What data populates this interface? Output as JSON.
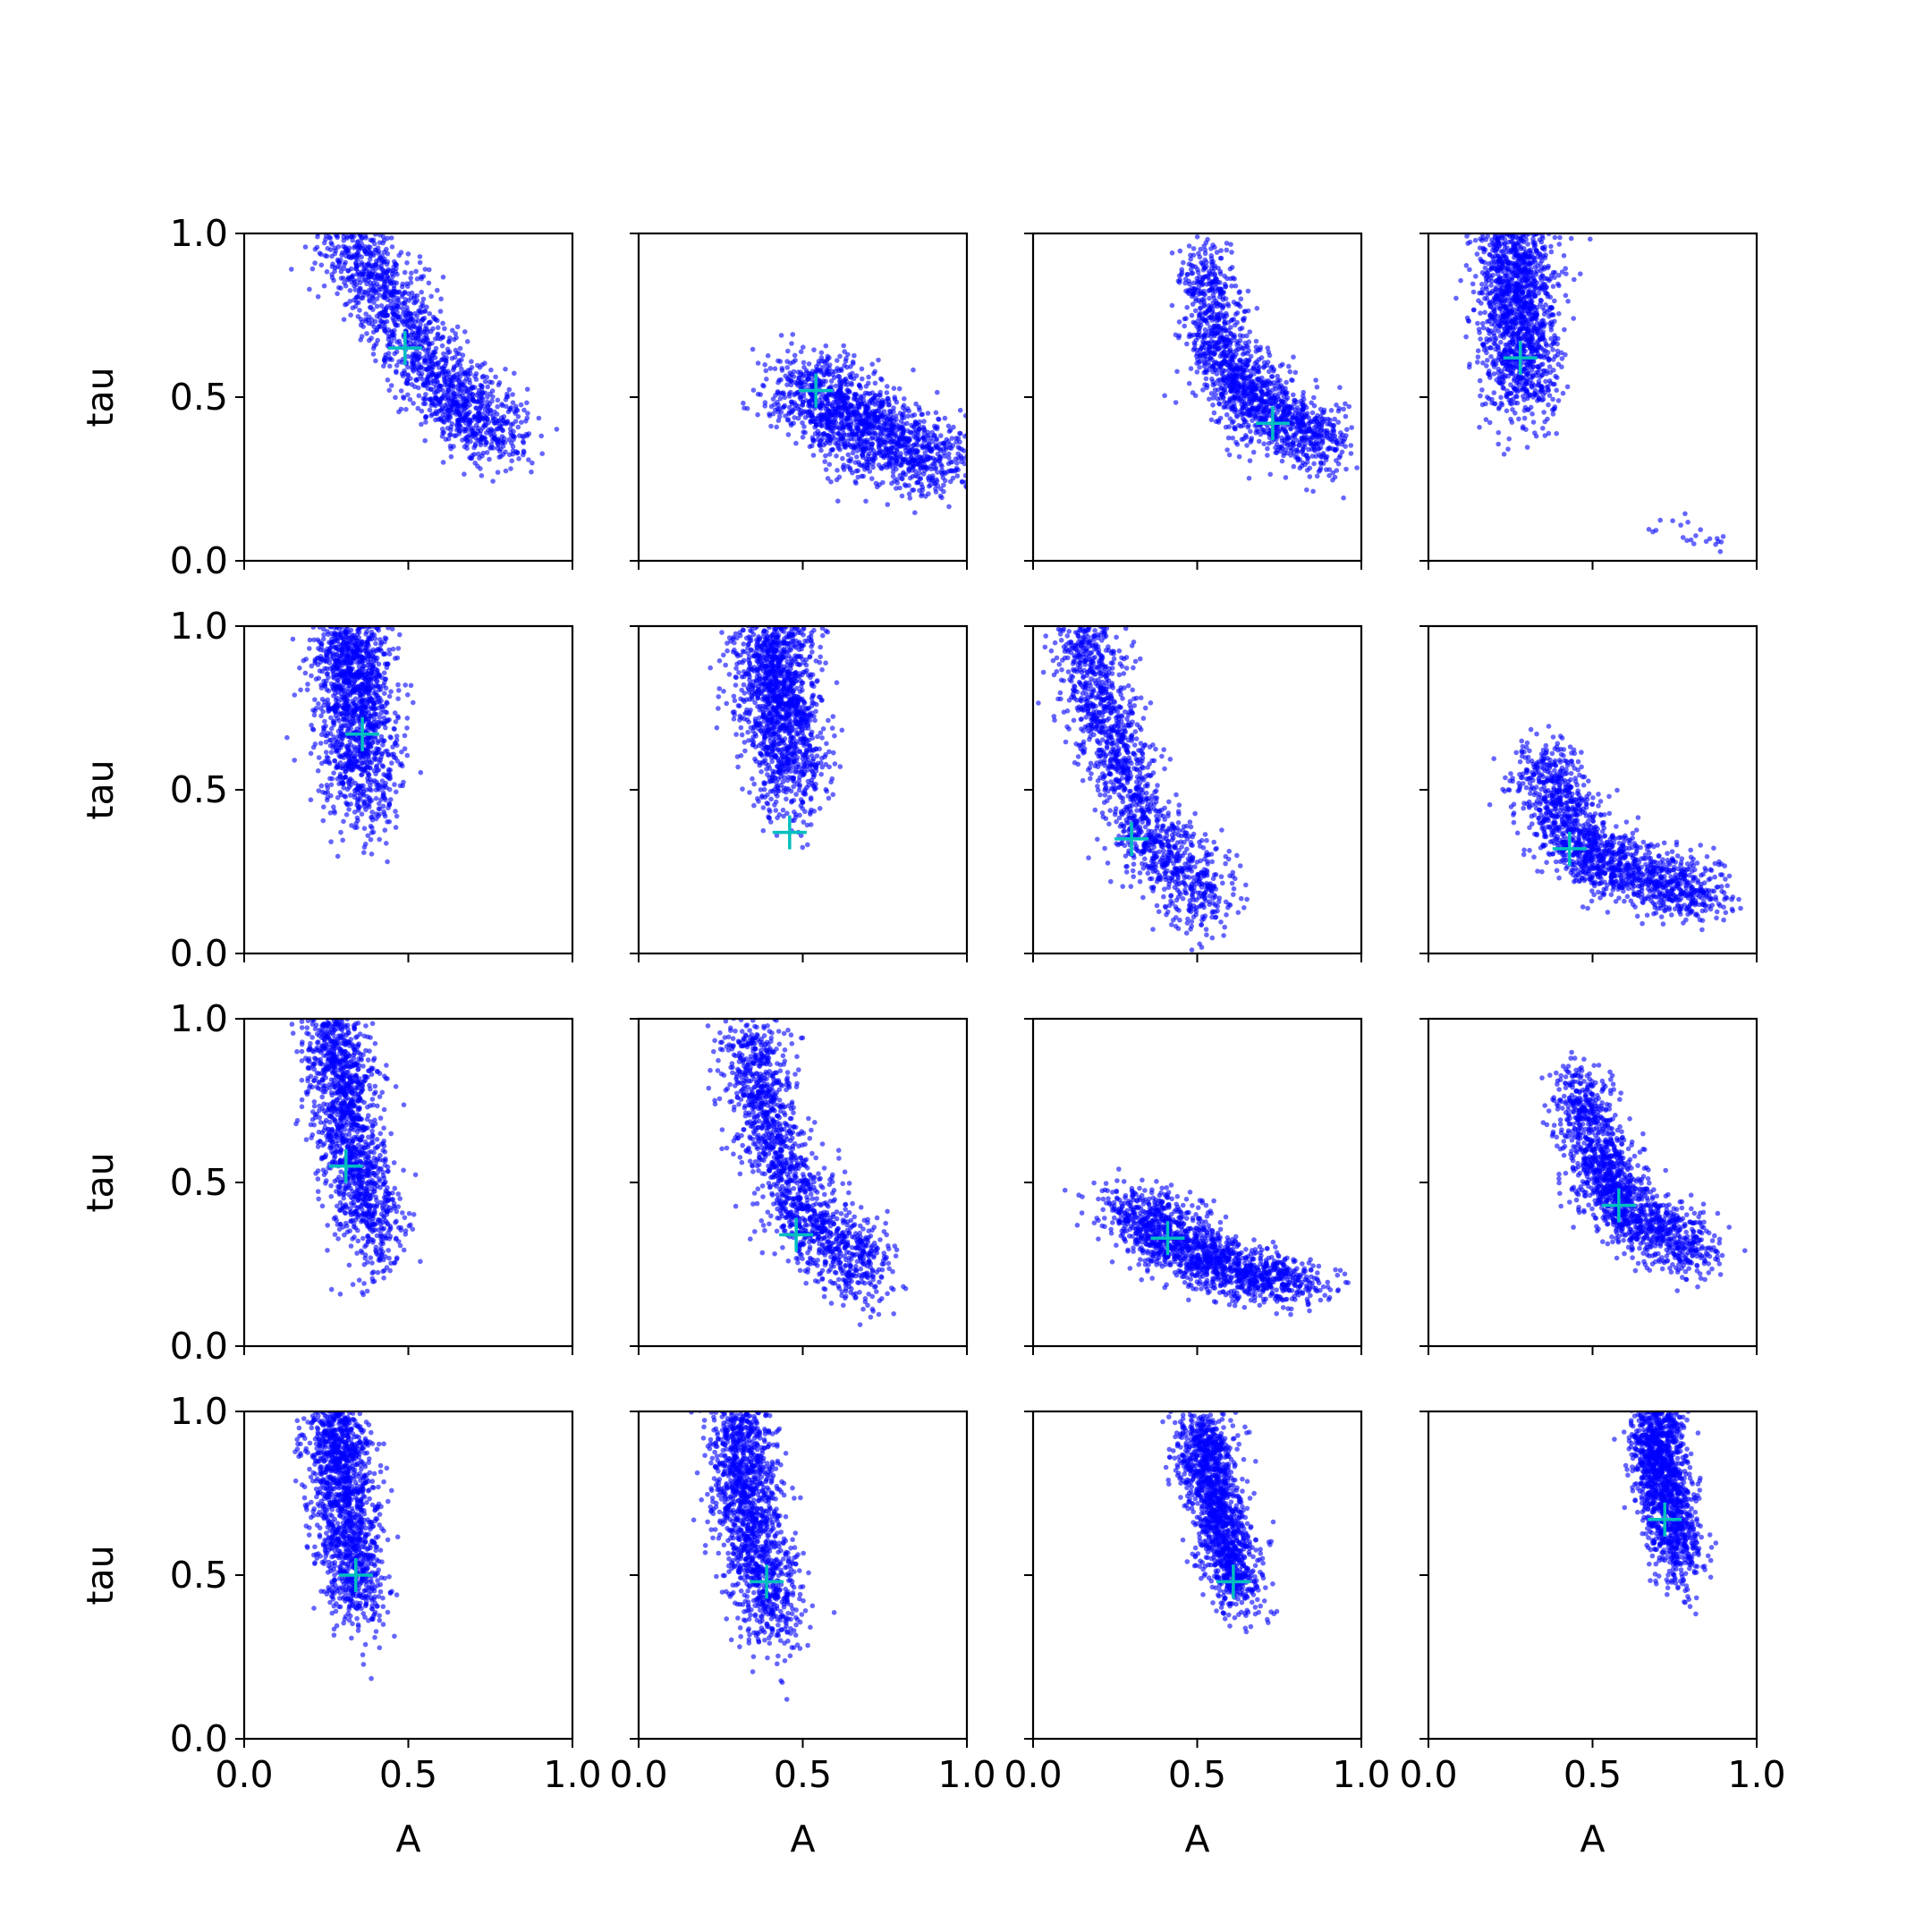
{
  "chart_data": {
    "type": "scatter",
    "layout": "4x4 grid of panels, shared axes",
    "xlabel": "A",
    "ylabel": "tau",
    "xlim": [
      0.0,
      1.0
    ],
    "ylim": [
      0.0,
      1.0
    ],
    "xticks": [
      "0.0",
      "0.5",
      "1.0"
    ],
    "yticks": [
      "0.0",
      "0.5",
      "1.0"
    ],
    "grid": false,
    "point_color": "#0000ff",
    "marker_color": "#00bfbf",
    "points_per_panel": 1500,
    "panels": [
      {
        "row": 0,
        "col": 0,
        "marker": [
          0.49,
          0.65
        ],
        "clusters": [
          {
            "x": [
              0.3,
              0.47,
              0.63,
              0.8
            ],
            "y": [
              1.0,
              0.75,
              0.5,
              0.38
            ],
            "sx": 0.06,
            "sy": 0.06
          }
        ]
      },
      {
        "row": 0,
        "col": 1,
        "marker": [
          0.54,
          0.52
        ],
        "clusters": [
          {
            "x": [
              0.5,
              0.62,
              0.75,
              0.95
            ],
            "y": [
              0.55,
              0.45,
              0.35,
              0.3
            ],
            "sx": 0.08,
            "sy": 0.06
          }
        ]
      },
      {
        "row": 0,
        "col": 2,
        "marker": [
          0.73,
          0.42
        ],
        "clusters": [
          {
            "x": [
              0.52,
              0.58,
              0.7,
              0.92
            ],
            "y": [
              0.92,
              0.6,
              0.45,
              0.35
            ],
            "sx": 0.05,
            "sy": 0.06
          }
        ]
      },
      {
        "row": 0,
        "col": 3,
        "marker": [
          0.28,
          0.62
        ],
        "clusters": [
          {
            "x": [
              0.25,
              0.27,
              0.28,
              0.28
            ],
            "y": [
              1.0,
              0.85,
              0.7,
              0.5
            ],
            "sx": 0.06,
            "sy": 0.08
          },
          {
            "x": [
              0.65,
              0.78,
              0.9
            ],
            "y": [
              0.12,
              0.1,
              0.05
            ],
            "sx": 0.02,
            "sy": 0.02,
            "weight": 0.015
          }
        ]
      },
      {
        "row": 1,
        "col": 0,
        "marker": [
          0.36,
          0.67
        ],
        "clusters": [
          {
            "x": [
              0.32,
              0.33,
              0.34,
              0.37
            ],
            "y": [
              1.0,
              0.85,
              0.7,
              0.45
            ],
            "sx": 0.06,
            "sy": 0.08
          }
        ]
      },
      {
        "row": 1,
        "col": 1,
        "marker": [
          0.46,
          0.37
        ],
        "clusters": [
          {
            "x": [
              0.4,
              0.42,
              0.44,
              0.47
            ],
            "y": [
              1.0,
              0.85,
              0.7,
              0.5
            ],
            "sx": 0.06,
            "sy": 0.08
          }
        ]
      },
      {
        "row": 1,
        "col": 2,
        "marker": [
          0.3,
          0.35
        ],
        "clusters": [
          {
            "x": [
              0.15,
              0.22,
              0.35,
              0.55
            ],
            "y": [
              1.0,
              0.7,
              0.35,
              0.15
            ],
            "sx": 0.05,
            "sy": 0.07
          }
        ]
      },
      {
        "row": 1,
        "col": 3,
        "marker": [
          0.43,
          0.32
        ],
        "clusters": [
          {
            "x": [
              0.35,
              0.43,
              0.6,
              0.85
            ],
            "y": [
              0.6,
              0.35,
              0.25,
              0.18
            ],
            "sx": 0.06,
            "sy": 0.05
          }
        ]
      },
      {
        "row": 2,
        "col": 0,
        "marker": [
          0.31,
          0.55
        ],
        "clusters": [
          {
            "x": [
              0.26,
              0.3,
              0.34,
              0.42
            ],
            "y": [
              1.0,
              0.8,
              0.55,
              0.3
            ],
            "sx": 0.05,
            "sy": 0.08
          }
        ]
      },
      {
        "row": 2,
        "col": 1,
        "marker": [
          0.48,
          0.34
        ],
        "clusters": [
          {
            "x": [
              0.33,
              0.4,
              0.5,
              0.72
            ],
            "y": [
              0.95,
              0.65,
              0.38,
              0.22
            ],
            "sx": 0.05,
            "sy": 0.07
          }
        ]
      },
      {
        "row": 2,
        "col": 2,
        "marker": [
          0.41,
          0.33
        ],
        "clusters": [
          {
            "x": [
              0.3,
              0.42,
              0.58,
              0.82
            ],
            "y": [
              0.45,
              0.32,
              0.24,
              0.18
            ],
            "sx": 0.07,
            "sy": 0.04
          }
        ]
      },
      {
        "row": 2,
        "col": 3,
        "marker": [
          0.58,
          0.43
        ],
        "clusters": [
          {
            "x": [
              0.45,
              0.52,
              0.62,
              0.82
            ],
            "y": [
              0.8,
              0.55,
              0.4,
              0.28
            ],
            "sx": 0.05,
            "sy": 0.05
          }
        ]
      },
      {
        "row": 3,
        "col": 0,
        "marker": [
          0.34,
          0.5
        ],
        "clusters": [
          {
            "x": [
              0.28,
              0.29,
              0.31,
              0.35
            ],
            "y": [
              1.0,
              0.85,
              0.65,
              0.4
            ],
            "sx": 0.05,
            "sy": 0.08
          }
        ]
      },
      {
        "row": 3,
        "col": 1,
        "marker": [
          0.39,
          0.48
        ],
        "clusters": [
          {
            "x": [
              0.3,
              0.32,
              0.35,
              0.42
            ],
            "y": [
              1.0,
              0.8,
              0.6,
              0.35
            ],
            "sx": 0.05,
            "sy": 0.08
          }
        ]
      },
      {
        "row": 3,
        "col": 2,
        "marker": [
          0.61,
          0.48
        ],
        "clusters": [
          {
            "x": [
              0.5,
              0.54,
              0.58,
              0.64
            ],
            "y": [
              0.95,
              0.8,
              0.62,
              0.45
            ],
            "sx": 0.04,
            "sy": 0.06
          }
        ]
      },
      {
        "row": 3,
        "col": 3,
        "marker": [
          0.72,
          0.67
        ],
        "clusters": [
          {
            "x": [
              0.68,
              0.7,
              0.72,
              0.78
            ],
            "y": [
              1.0,
              0.88,
              0.72,
              0.55
            ],
            "sx": 0.04,
            "sy": 0.07
          }
        ]
      }
    ]
  }
}
